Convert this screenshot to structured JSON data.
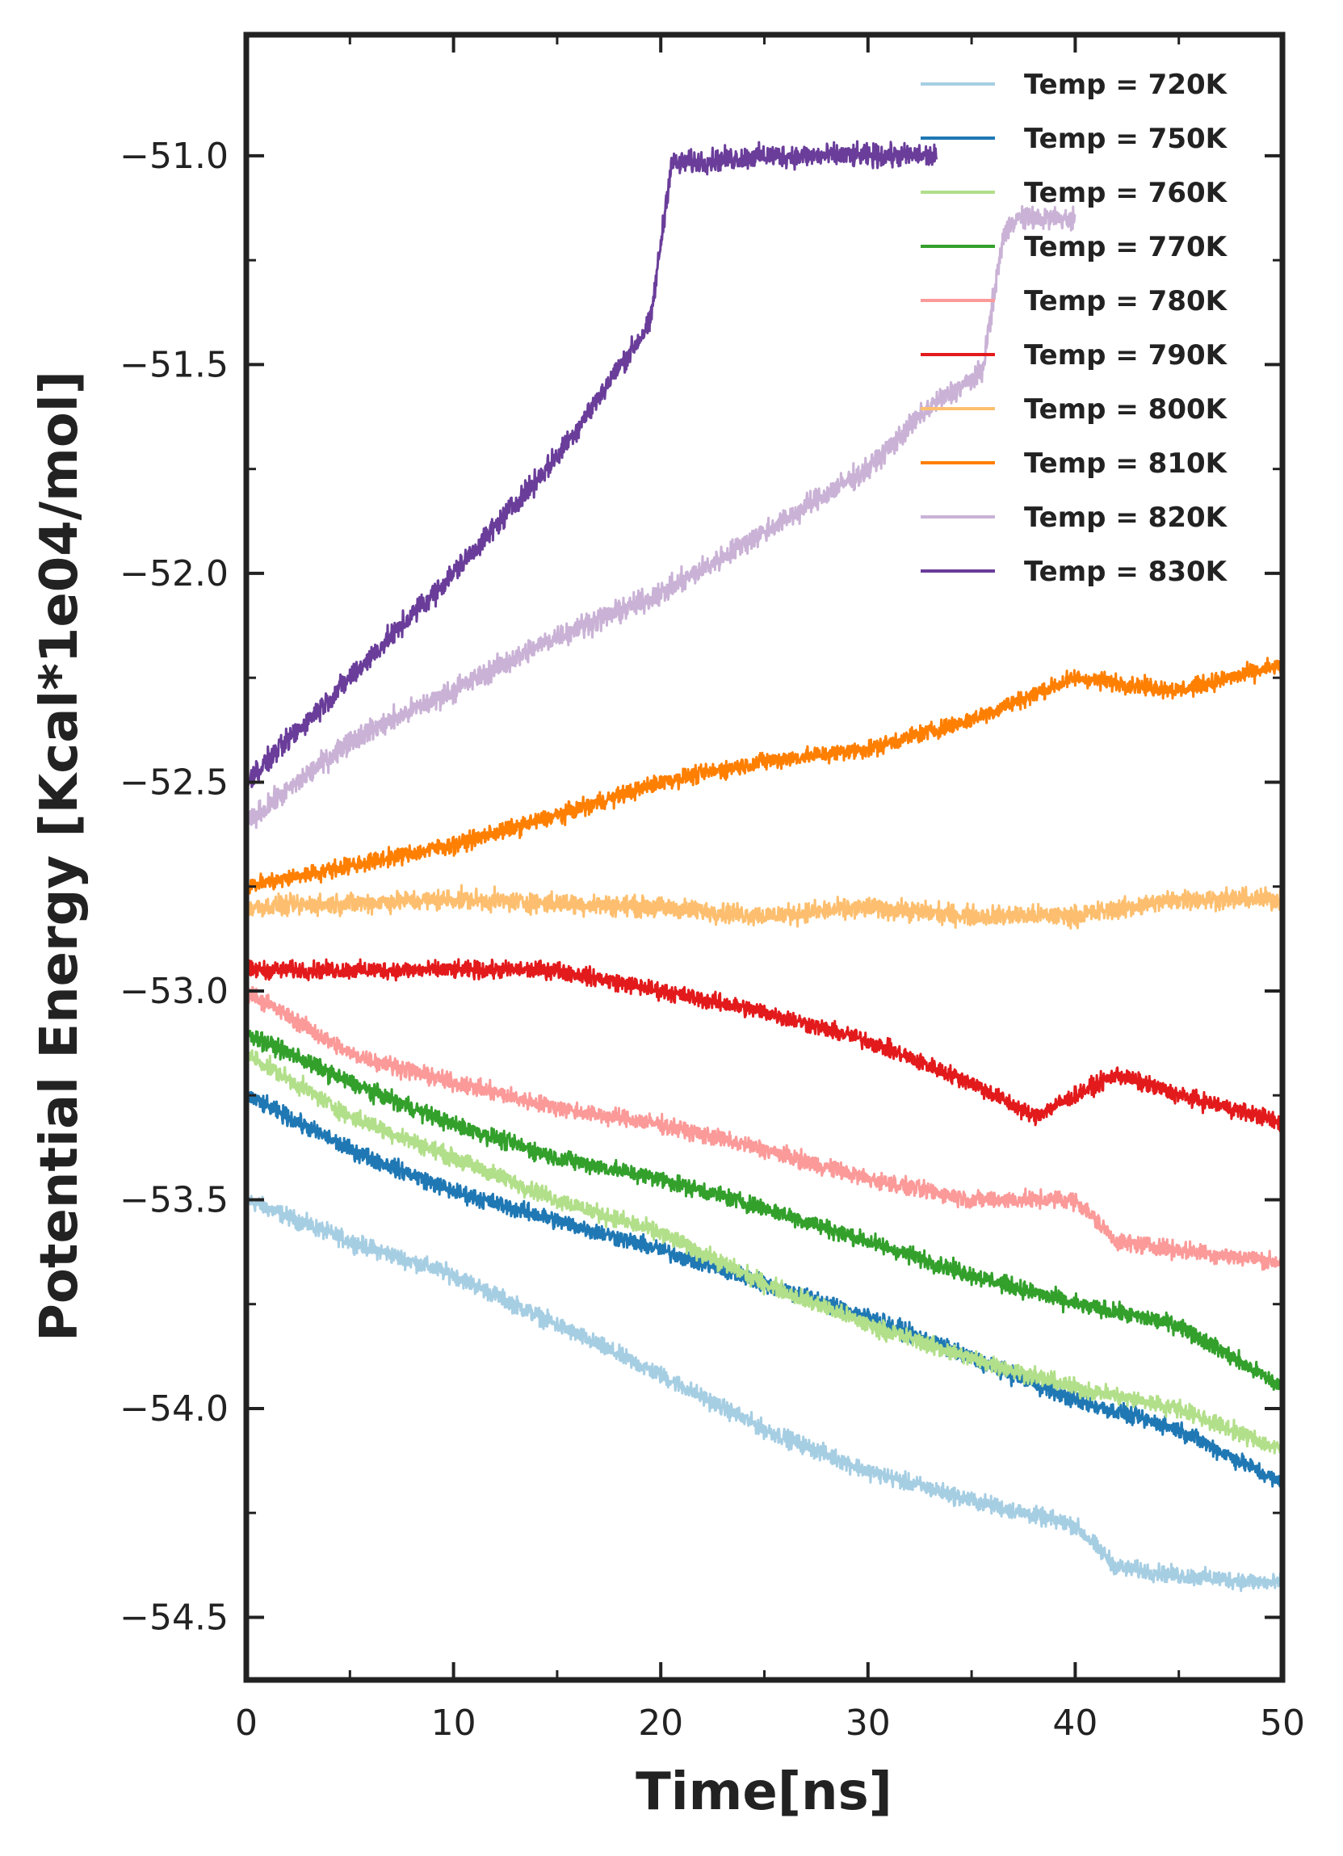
{
  "chart_data": {
    "type": "line",
    "title": "",
    "xlabel": "Time[ns]",
    "ylabel": "Potential Energy [Kcal*1e04/mol]",
    "xlim": [
      0,
      50
    ],
    "ylim": [
      -54.65,
      -50.71
    ],
    "xticks": [
      0,
      10,
      20,
      30,
      40,
      50
    ],
    "xtick_labels": [
      "0",
      "10",
      "20",
      "30",
      "40",
      "50"
    ],
    "yticks": [
      -51.0,
      -51.5,
      -52.0,
      -52.5,
      -53.0,
      -53.5,
      -54.0,
      -54.5
    ],
    "ytick_labels": [
      "−51.0",
      "−51.5",
      "−52.0",
      "−52.5",
      "−53.0",
      "−53.5",
      "−54.0",
      "−54.5"
    ],
    "grid": false,
    "legend_position": "top-right",
    "series": [
      {
        "name": "Temp = 720K",
        "color": "#a6cee3",
        "noise": 0.03,
        "x": [
          0,
          5,
          10,
          15,
          20,
          25,
          30,
          35,
          40,
          42,
          45,
          50
        ],
        "y": [
          -53.5,
          -53.6,
          -53.68,
          -53.8,
          -53.92,
          -54.05,
          -54.15,
          -54.22,
          -54.28,
          -54.38,
          -54.4,
          -54.42
        ]
      },
      {
        "name": "Temp = 750K",
        "color": "#1f78b4",
        "noise": 0.03,
        "x": [
          0,
          5,
          10,
          15,
          20,
          25,
          30,
          35,
          40,
          45,
          50
        ],
        "y": [
          -53.25,
          -53.38,
          -53.48,
          -53.55,
          -53.62,
          -53.7,
          -53.78,
          -53.88,
          -53.98,
          -54.05,
          -54.18
        ]
      },
      {
        "name": "Temp = 760K",
        "color": "#b2df8a",
        "noise": 0.03,
        "x": [
          0,
          5,
          10,
          15,
          20,
          25,
          30,
          35,
          40,
          45,
          50
        ],
        "y": [
          -53.15,
          -53.3,
          -53.4,
          -53.5,
          -53.58,
          -53.7,
          -53.8,
          -53.88,
          -53.95,
          -54.0,
          -54.1
        ]
      },
      {
        "name": "Temp = 770K",
        "color": "#33a02c",
        "noise": 0.03,
        "x": [
          0,
          5,
          10,
          15,
          20,
          25,
          30,
          35,
          40,
          45,
          50
        ],
        "y": [
          -53.1,
          -53.22,
          -53.32,
          -53.4,
          -53.45,
          -53.52,
          -53.6,
          -53.68,
          -53.75,
          -53.8,
          -53.95
        ]
      },
      {
        "name": "Temp = 780K",
        "color": "#fb9a99",
        "noise": 0.03,
        "x": [
          0,
          5,
          10,
          15,
          20,
          25,
          30,
          35,
          40,
          42,
          45,
          50
        ],
        "y": [
          -53.0,
          -53.15,
          -53.22,
          -53.28,
          -53.32,
          -53.38,
          -53.45,
          -53.5,
          -53.5,
          -53.6,
          -53.62,
          -53.65
        ]
      },
      {
        "name": "Temp = 790K",
        "color": "#e31a1c",
        "noise": 0.03,
        "x": [
          0,
          5,
          10,
          15,
          20,
          25,
          30,
          35,
          38,
          42,
          45,
          49,
          50
        ],
        "y": [
          -52.95,
          -52.95,
          -52.95,
          -52.95,
          -53.0,
          -53.05,
          -53.12,
          -53.22,
          -53.3,
          -53.2,
          -53.25,
          -53.3,
          -53.32
        ]
      },
      {
        "name": "Temp = 800K",
        "color": "#fdbf6f",
        "noise": 0.035,
        "x": [
          0,
          10,
          20,
          25,
          30,
          35,
          40,
          45,
          50
        ],
        "y": [
          -52.8,
          -52.78,
          -52.8,
          -52.82,
          -52.8,
          -52.82,
          -52.82,
          -52.78,
          -52.78
        ]
      },
      {
        "name": "Temp = 810K",
        "color": "#ff7f00",
        "noise": 0.03,
        "x": [
          0,
          5,
          10,
          15,
          20,
          25,
          30,
          35,
          40,
          45,
          50
        ],
        "y": [
          -52.75,
          -52.7,
          -52.65,
          -52.58,
          -52.5,
          -52.45,
          -52.42,
          -52.35,
          -52.25,
          -52.28,
          -52.22
        ]
      },
      {
        "name": "Temp = 820K",
        "color": "#cab2d6",
        "noise": 0.04,
        "x": [
          0,
          5,
          10,
          15,
          20,
          25,
          30,
          33,
          35.5,
          36.5,
          37,
          40
        ],
        "y": [
          -52.6,
          -52.4,
          -52.28,
          -52.15,
          -52.05,
          -51.9,
          -51.75,
          -51.6,
          -51.52,
          -51.2,
          -51.15,
          -51.15
        ]
      },
      {
        "name": "Temp = 830K",
        "color": "#6a3d9a",
        "noise": 0.04,
        "x": [
          0,
          5,
          10,
          15,
          19.5,
          20.5,
          25,
          30,
          33.3
        ],
        "y": [
          -52.5,
          -52.25,
          -52.0,
          -51.72,
          -51.4,
          -51.02,
          -51.0,
          -51.0,
          -51.0
        ]
      }
    ]
  }
}
